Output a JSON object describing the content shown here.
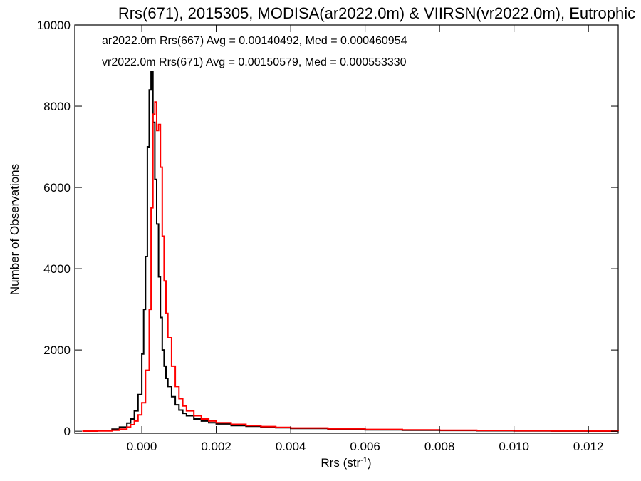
{
  "chart_data": {
    "type": "line",
    "title": "Rrs(671), 2015305, MODISA(ar2022.0m) & VIIRSN(vr2022.0m), Eutrophic",
    "xlabel": "Rrs (str",
    "xlabel_sup": "-1",
    "xlabel_close": ")",
    "ylabel": "Number of Observations",
    "xlim": [
      -0.0018,
      0.0128
    ],
    "ylim": [
      -50,
      10000
    ],
    "x_ticks": [
      0.0,
      0.002,
      0.004,
      0.006,
      0.008,
      0.01,
      0.012
    ],
    "x_tick_labels": [
      "0.000",
      "0.002",
      "0.004",
      "0.006",
      "0.008",
      "0.010",
      "0.012"
    ],
    "y_ticks": [
      0,
      2000,
      4000,
      6000,
      8000,
      10000
    ],
    "y_tick_labels": [
      "0",
      "2000",
      "4000",
      "6000",
      "8000",
      "10000"
    ],
    "grid": false,
    "legend_placement": "top-left",
    "series": [
      {
        "legend_text": "ar2022.0m Rrs(667) Avg = 0.00140492, Med = 0.000460954",
        "color": "#000000",
        "x": [
          -0.0016,
          -0.0012,
          -0.0008,
          -0.0006,
          -0.0004,
          -0.0003,
          -0.0002,
          -0.0001,
          0.0,
          5e-05,
          0.0001,
          0.00015,
          0.0002,
          0.00025,
          0.0003,
          0.00035,
          0.0004,
          0.00045,
          0.0005,
          0.00055,
          0.0006,
          0.00065,
          0.0007,
          0.0008,
          0.0009,
          0.001,
          0.0011,
          0.0012,
          0.0014,
          0.0016,
          0.0018,
          0.002,
          0.0024,
          0.0028,
          0.0032,
          0.0036,
          0.004,
          0.005,
          0.006,
          0.007,
          0.008,
          0.009,
          0.01,
          0.011,
          0.012,
          0.0128
        ],
        "values": [
          5,
          15,
          50,
          100,
          200,
          300,
          500,
          900,
          1900,
          3000,
          4300,
          7000,
          8400,
          8850,
          7600,
          6200,
          5100,
          3800,
          2800,
          2000,
          1600,
          1300,
          1100,
          850,
          650,
          520,
          440,
          380,
          300,
          250,
          210,
          180,
          140,
          120,
          100,
          85,
          70,
          50,
          35,
          25,
          18,
          12,
          8,
          5,
          3,
          2
        ]
      },
      {
        "legend_text": "vr2022.0m Rrs(671) Avg = 0.00150579, Med = 0.000553330",
        "color": "#ff0000",
        "x": [
          -0.0016,
          -0.0012,
          -0.0008,
          -0.0006,
          -0.0004,
          -0.0003,
          -0.0002,
          -0.0001,
          0.0,
          0.0001,
          0.0002,
          0.00025,
          0.0003,
          0.00035,
          0.0004,
          0.00045,
          0.0005,
          0.00055,
          0.0006,
          0.00065,
          0.0007,
          0.0008,
          0.0009,
          0.001,
          0.0011,
          0.0012,
          0.0014,
          0.0016,
          0.0018,
          0.002,
          0.0024,
          0.0028,
          0.0032,
          0.0036,
          0.004,
          0.005,
          0.006,
          0.007,
          0.008,
          0.009,
          0.01,
          0.011,
          0.012,
          0.0128
        ],
        "values": [
          3,
          8,
          25,
          50,
          100,
          160,
          250,
          400,
          700,
          1500,
          3000,
          5500,
          7800,
          8100,
          7400,
          7550,
          6500,
          4800,
          3700,
          2900,
          2300,
          1600,
          1100,
          800,
          620,
          500,
          380,
          300,
          250,
          210,
          170,
          140,
          115,
          95,
          80,
          60,
          45,
          35,
          25,
          18,
          12,
          8,
          5,
          3
        ]
      }
    ]
  }
}
